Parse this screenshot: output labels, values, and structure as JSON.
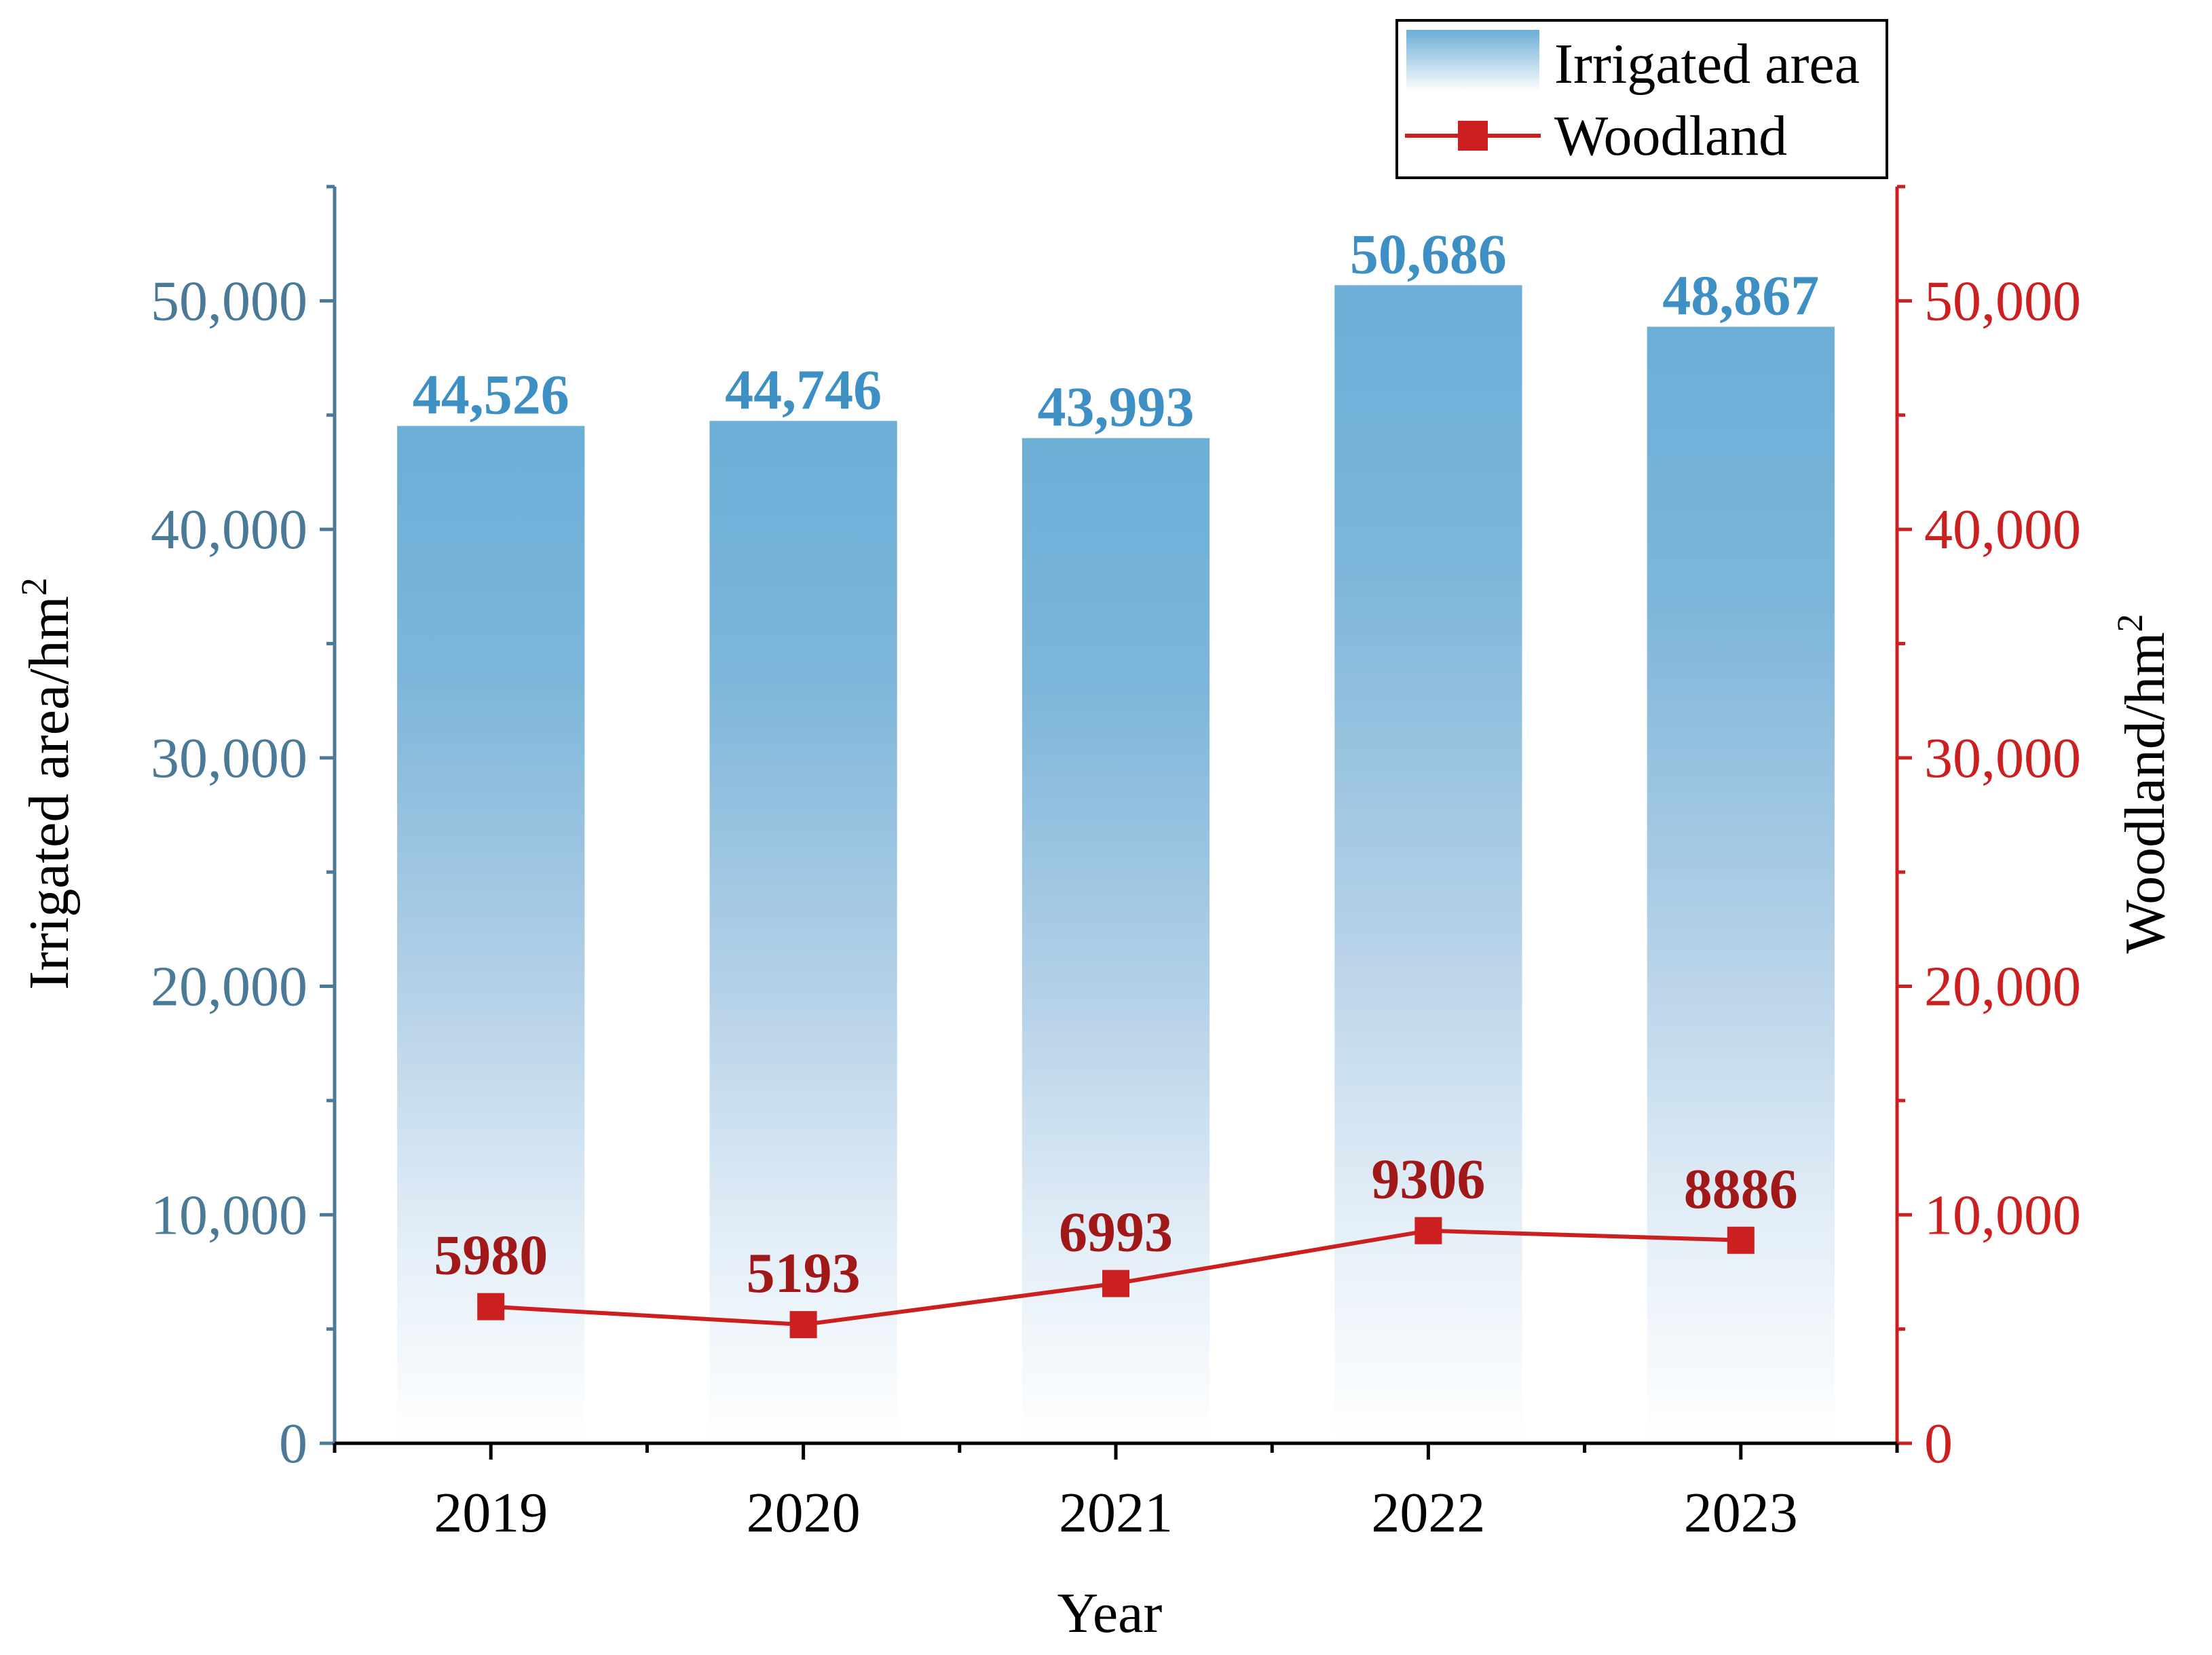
{
  "chart_data": {
    "type": "bar",
    "categories": [
      "2019",
      "2020",
      "2021",
      "2022",
      "2023"
    ],
    "series": [
      {
        "name": "Irrigated area",
        "type": "bar",
        "axis": "left",
        "values": [
          44526,
          44746,
          43993,
          50686,
          48867
        ],
        "labels": [
          "44,526",
          "44,746",
          "43,993",
          "50,686",
          "48,867"
        ],
        "color": "#6baed6"
      },
      {
        "name": "Woodland",
        "type": "line",
        "axis": "right",
        "marker": "square",
        "values": [
          5980,
          5193,
          6993,
          9306,
          8886
        ],
        "labels": [
          "5980",
          "5193",
          "6993",
          "9306",
          "8886"
        ],
        "color": "#cc1f1f"
      }
    ],
    "xlabel": "Year",
    "ylabel_left": "Irrigated area/hm",
    "ylabel_right": "Woodland/hm",
    "ylabel_superscript": "2",
    "ylim_left": [
      0,
      55000
    ],
    "ylim_right": [
      0,
      55000
    ],
    "yticks_left": [
      "0",
      "10,000",
      "20,000",
      "30,000",
      "40,000",
      "50,000"
    ],
    "yticks_right": [
      "0",
      "10,000",
      "20,000",
      "30,000",
      "40,000",
      "50,000"
    ],
    "legend_position": "top-right",
    "colors": {
      "bar": "#6baed6",
      "bar_label": "#3d8fc4",
      "left_axis": "#4a7a98",
      "right_axis": "#cc1f1f",
      "line": "#cc1f1f",
      "line_label": "#a01818"
    }
  }
}
